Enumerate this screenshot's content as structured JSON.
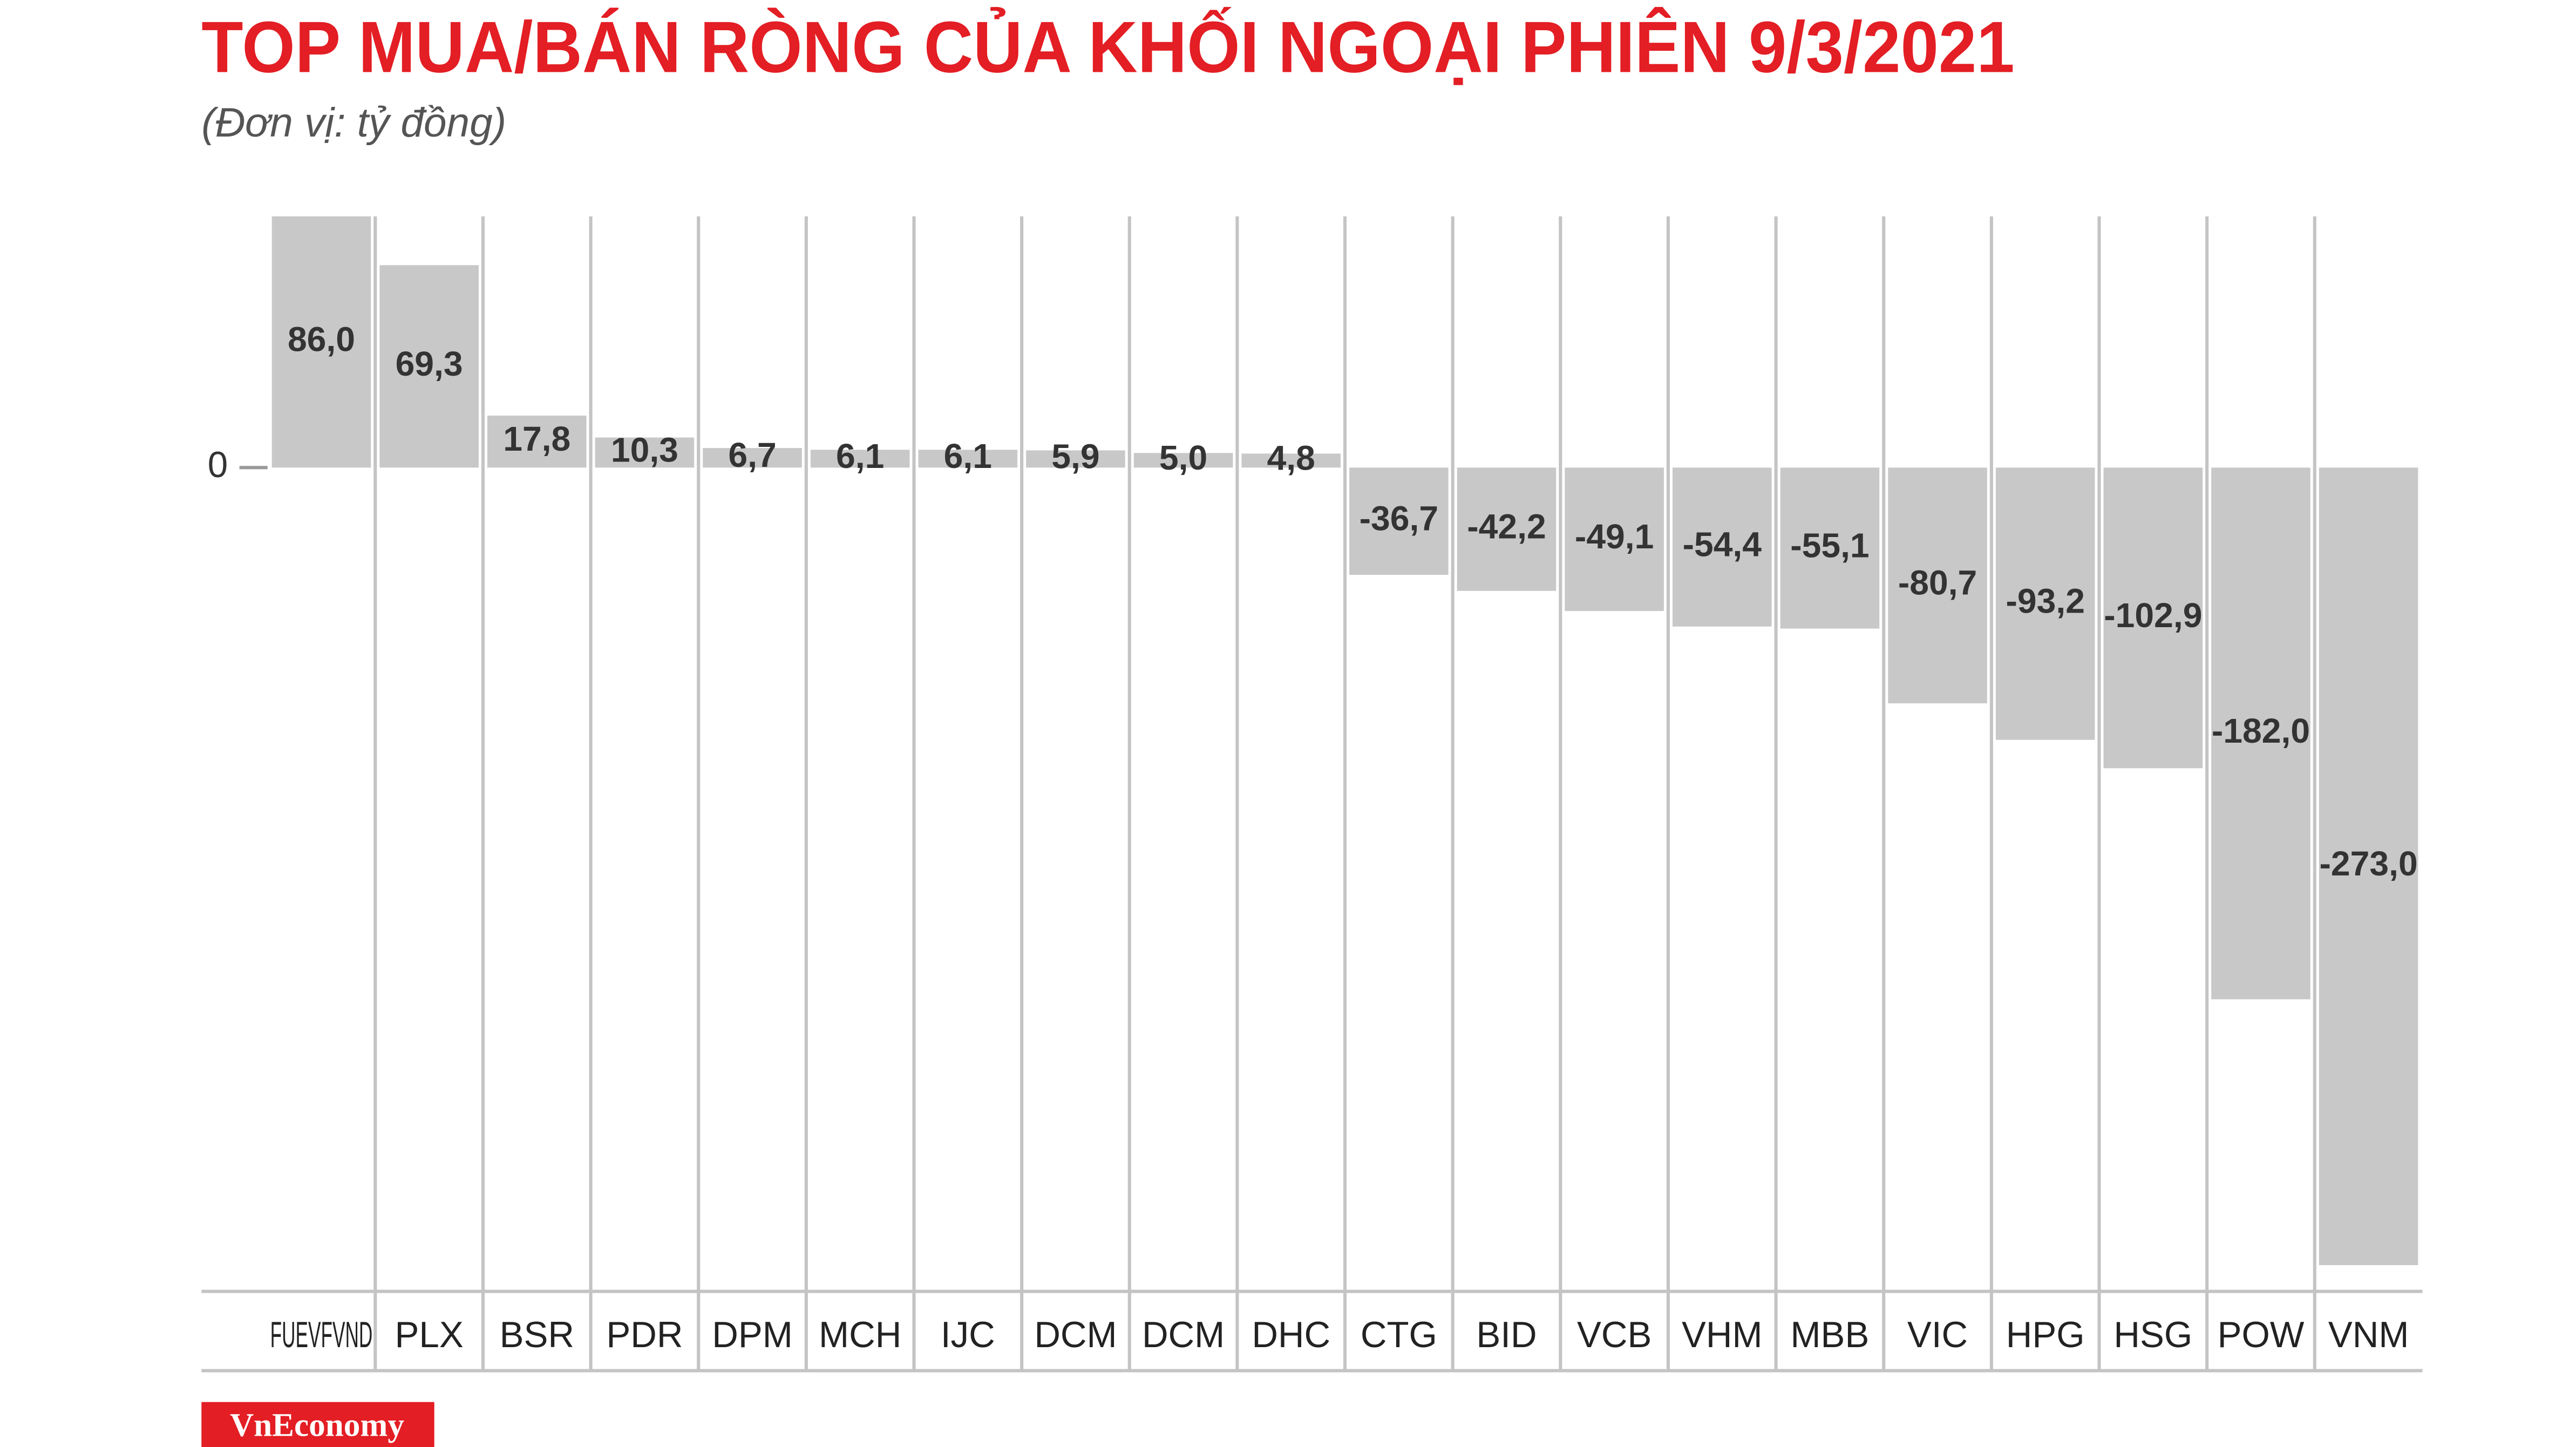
{
  "chart_data": {
    "type": "bar",
    "title": "TOP MUA/BÁN RÒNG CỦA KHỐI NGOẠI PHIÊN 9/3/2021",
    "subtitle": "(Đơn vị: tỷ đồng)",
    "categories": [
      "FUEVFVND",
      "PLX",
      "BSR",
      "PDR",
      "DPM",
      "MCH",
      "IJC",
      "DCM",
      "DCM",
      "DHC",
      "CTG",
      "BID",
      "VCB",
      "VHM",
      "MBB",
      "VIC",
      "HPG",
      "HSG",
      "POW",
      "VNM"
    ],
    "values": [
      86.0,
      69.3,
      17.8,
      10.3,
      6.7,
      6.1,
      6.1,
      5.9,
      5.0,
      4.8,
      -36.7,
      -42.2,
      -49.1,
      -54.4,
      -55.1,
      -80.7,
      -93.2,
      -102.9,
      -182.0,
      -273.0
    ],
    "value_labels": [
      "86,0",
      "69,3",
      "17,8",
      "10,3",
      "6,7",
      "6,1",
      "6,1",
      "5,9",
      "5,0",
      "4,8",
      "-36,7",
      "-42,2",
      "-49,1",
      "-54,4",
      "-55,1",
      "-80,7",
      "-93,2",
      "-102,9",
      "-182,0",
      "-273,0"
    ],
    "color": "#c8c8c8",
    "ylim": [
      -282,
      86
    ],
    "yticks": [
      0
    ],
    "logo": "VnEconomy"
  }
}
